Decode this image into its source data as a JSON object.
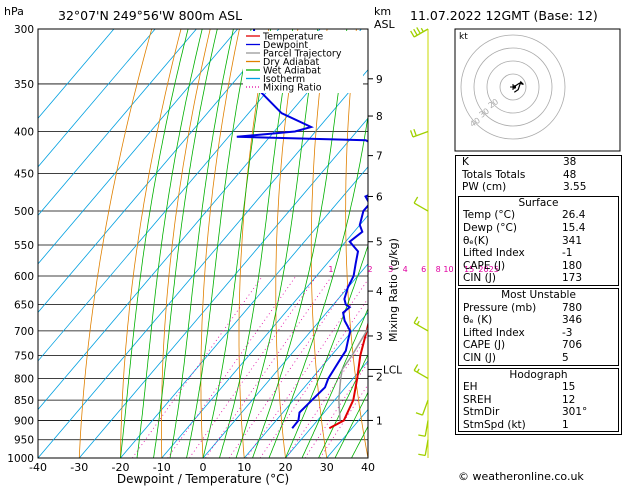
{
  "header": {
    "location": "32°07'N  249°56'W  800m  ASL",
    "datetime": "11.07.2022  12GMT  (Base: 12)"
  },
  "chart_data": {
    "type": "skew-t",
    "title": "32°07'N  249°56'W  800m  ASL",
    "xlabel": "Dewpoint / Temperature (°C)",
    "ylabel_left": "hPa",
    "ylabel_right_top": "km",
    "ylabel_right_top2": "ASL",
    "ylabel_mixing": "Mixing Ratio (g/kg)",
    "x_ticks": [
      -40,
      -30,
      -20,
      -10,
      0,
      10,
      20,
      30,
      40
    ],
    "xlim": [
      -40,
      40
    ],
    "pressure_ticks": [
      300,
      350,
      400,
      450,
      500,
      550,
      600,
      650,
      700,
      750,
      800,
      850,
      900,
      950,
      1000
    ],
    "ylim": [
      1000,
      300
    ],
    "height_km_ticks": [
      {
        "label": "9",
        "p": 345
      },
      {
        "label": "8",
        "p": 383
      },
      {
        "label": "7",
        "p": 428
      },
      {
        "label": "6",
        "p": 480
      },
      {
        "label": "5",
        "p": 545
      },
      {
        "label": "4",
        "p": 626
      },
      {
        "label": "3",
        "p": 710
      },
      {
        "label": "2",
        "p": 795
      },
      {
        "label": "1",
        "p": 900
      }
    ],
    "lcl": {
      "label": "LCL",
      "p": 780
    },
    "mixing_ratio_labels": [
      {
        "label": "1",
        "t": -6.5
      },
      {
        "label": "2",
        "t": 3
      },
      {
        "label": "3",
        "t": 8
      },
      {
        "label": "4",
        "t": 11.5
      },
      {
        "label": "6",
        "t": 16
      },
      {
        "label": "8",
        "t": 19.5
      },
      {
        "label": "10",
        "t": 22
      },
      {
        "label": "15",
        "t": 27
      },
      {
        "label": "20",
        "t": 30.5
      },
      {
        "label": "25",
        "t": 33
      }
    ],
    "legend": [
      {
        "name": "Temperature",
        "color": "#e00000",
        "style": "solid"
      },
      {
        "name": "Dewpoint",
        "color": "#0000e0",
        "style": "solid"
      },
      {
        "name": "Parcel Trajectory",
        "color": "#999999",
        "style": "solid"
      },
      {
        "name": "Dry Adiabat",
        "color": "#e08000",
        "style": "solid"
      },
      {
        "name": "Wet Adiabat",
        "color": "#00b000",
        "style": "solid"
      },
      {
        "name": "Isotherm",
        "color": "#00a0e0",
        "style": "solid"
      },
      {
        "name": "Mixing Ratio",
        "color": "#e000a0",
        "style": "dotted"
      }
    ],
    "legend_position": "top-left",
    "series": [
      {
        "name": "Temperature",
        "color": "#e00000",
        "points": [
          [
            920,
            24.5
          ],
          [
            900,
            26.4
          ],
          [
            850,
            24.5
          ],
          [
            800,
            21
          ],
          [
            750,
            17
          ],
          [
            700,
            13.5
          ],
          [
            650,
            9.5
          ],
          [
            600,
            5.5
          ],
          [
            550,
            1
          ],
          [
            500,
            -4
          ],
          [
            450,
            -9.5
          ],
          [
            400,
            -16
          ],
          [
            350,
            -24
          ],
          [
            300,
            -33
          ]
        ]
      },
      {
        "name": "Dewpoint",
        "color": "#0000e0",
        "points": [
          [
            920,
            15.5
          ],
          [
            900,
            15.4
          ],
          [
            880,
            14
          ],
          [
            850,
            14.5
          ],
          [
            820,
            15
          ],
          [
            800,
            14
          ],
          [
            780,
            13.5
          ],
          [
            760,
            13
          ],
          [
            740,
            12.5
          ],
          [
            720,
            11
          ],
          [
            700,
            9.5
          ],
          [
            680,
            6
          ],
          [
            665,
            4
          ],
          [
            655,
            4.5
          ],
          [
            650,
            3
          ],
          [
            640,
            1.5
          ],
          [
            620,
            0
          ],
          [
            600,
            -1
          ],
          [
            580,
            -3
          ],
          [
            560,
            -5
          ],
          [
            545,
            -9
          ],
          [
            530,
            -8
          ],
          [
            520,
            -10
          ],
          [
            500,
            -12
          ],
          [
            490,
            -12
          ],
          [
            480,
            -14.5
          ],
          [
            470,
            -12
          ],
          [
            460,
            -13
          ],
          [
            450,
            -15
          ],
          [
            440,
            -16
          ],
          [
            430,
            -19
          ],
          [
            420,
            -20.5
          ],
          [
            410,
            -26
          ],
          [
            406,
            -58
          ],
          [
            400,
            -45
          ],
          [
            395,
            -42
          ],
          [
            380,
            -52
          ],
          [
            350,
            -65
          ],
          [
            300,
            -76
          ]
        ]
      },
      {
        "name": "Parcel Trajectory",
        "color": "#999999",
        "points": [
          [
            900,
            25.5
          ],
          [
            850,
            21
          ],
          [
            800,
            17
          ],
          [
            780,
            15.5
          ],
          [
            750,
            15
          ],
          [
            700,
            13.5
          ],
          [
            650,
            11
          ],
          [
            600,
            7.5
          ],
          [
            550,
            3.5
          ],
          [
            500,
            -1
          ],
          [
            450,
            -6.5
          ],
          [
            400,
            -13
          ],
          [
            350,
            -21
          ]
        ]
      }
    ],
    "wind_barbs": [
      {
        "p": 300,
        "dir": 240,
        "kt": 25
      },
      {
        "p": 400,
        "dir": 250,
        "kt": 20
      },
      {
        "p": 500,
        "dir": 300,
        "kt": 10
      },
      {
        "p": 700,
        "dir": 300,
        "kt": 5
      },
      {
        "p": 800,
        "dir": 300,
        "kt": 5
      },
      {
        "p": 850,
        "dir": 200,
        "kt": 10
      },
      {
        "p": 900,
        "dir": 190,
        "kt": 10
      },
      {
        "p": 950,
        "dir": 190,
        "kt": 10
      }
    ],
    "hodograph": {
      "unit_label": "kt",
      "rings_kt": [
        10,
        20,
        30,
        40
      ],
      "ring_labels": [
        "10",
        "20",
        "30",
        "40"
      ],
      "trace_kt": [
        [
          0,
          0
        ],
        [
          2,
          1
        ],
        [
          5,
          3
        ],
        [
          8,
          2
        ],
        [
          6,
          4
        ],
        [
          4,
          -2
        ],
        [
          1,
          -4
        ]
      ],
      "storm_motion_kt": [
        1,
        0
      ]
    }
  },
  "indices": {
    "rows": [
      {
        "label": "K",
        "value": "38"
      },
      {
        "label": "Totals Totals",
        "value": "48"
      },
      {
        "label": "PW (cm)",
        "value": "3.55"
      }
    ]
  },
  "surface": {
    "title": "Surface",
    "rows": [
      {
        "label": "Temp (°C)",
        "value": "26.4"
      },
      {
        "label": "Dewp (°C)",
        "value": "15.4"
      },
      {
        "label": "θₑ(K)",
        "value": "341"
      },
      {
        "label": "Lifted Index",
        "value": "-1"
      },
      {
        "label": "CAPE (J)",
        "value": "180"
      },
      {
        "label": "CIN (J)",
        "value": "173"
      }
    ]
  },
  "most_unstable": {
    "title": "Most Unstable",
    "rows": [
      {
        "label": "Pressure (mb)",
        "value": "780"
      },
      {
        "label": "θₑ (K)",
        "value": "346"
      },
      {
        "label": "Lifted Index",
        "value": "-3"
      },
      {
        "label": "CAPE (J)",
        "value": "706"
      },
      {
        "label": "CIN (J)",
        "value": "5"
      }
    ]
  },
  "hodograph_table": {
    "title": "Hodograph",
    "rows": [
      {
        "label": "EH",
        "value": "15"
      },
      {
        "label": "SREH",
        "value": "12"
      },
      {
        "label": "StmDir",
        "value": "301°"
      },
      {
        "label": "StmSpd (kt)",
        "value": "1"
      }
    ]
  },
  "footer": {
    "credit": "© weatheronline.co.uk"
  }
}
